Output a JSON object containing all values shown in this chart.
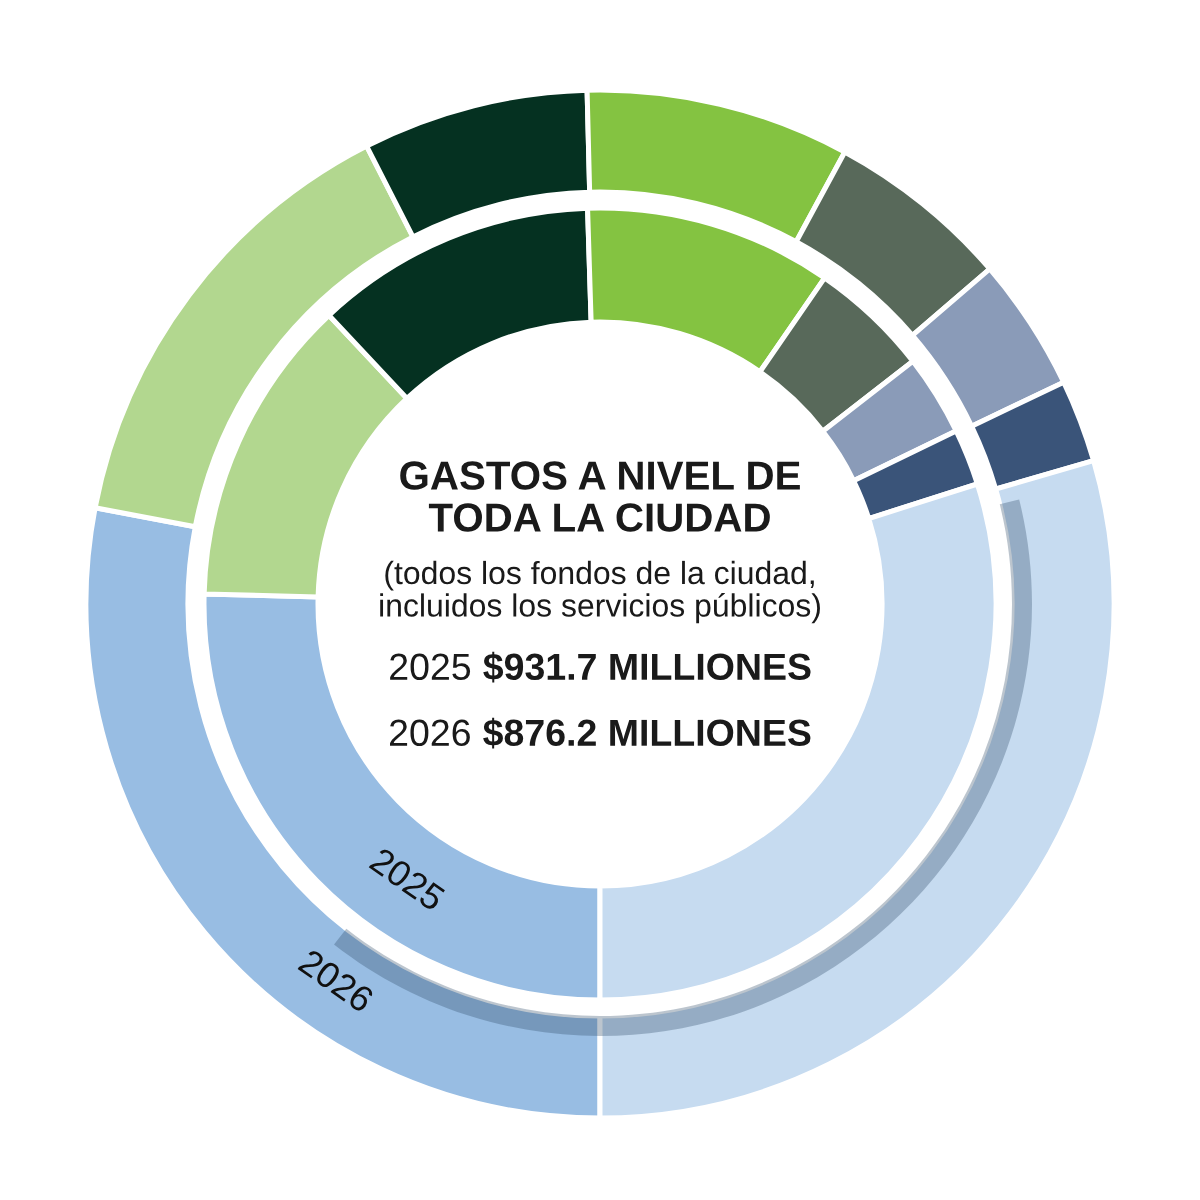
{
  "chart_data": {
    "type": "donut",
    "title": "GASTOS A NIVEL DE\nTODA LA CIUDAD",
    "subtitle": "(todos los fondos de la ciudad,\nincluidos los servicios públicos)",
    "annotations": [
      "2025 $931.7 MILLIONES",
      "2026 $876.2 MILLIONES"
    ],
    "categories": [
      null,
      null,
      null,
      null,
      null,
      null,
      null,
      null
    ],
    "colors": [
      "#98bde3",
      "#b2d78f",
      "#053121",
      "#84c341",
      "#58695a",
      "#8a9bb8",
      "#3a5479",
      "#c6dbf0"
    ],
    "series": [
      {
        "name": "2025",
        "values": [
          25.4,
          12.6,
          11.5,
          10.1,
          4.9,
          3.3,
          2.3,
          29.9
        ]
      },
      {
        "name": "2026",
        "values": [
          28.0,
          14.5,
          7.1,
          8.3,
          5.8,
          4.2,
          2.6,
          29.5
        ]
      }
    ]
  }
}
